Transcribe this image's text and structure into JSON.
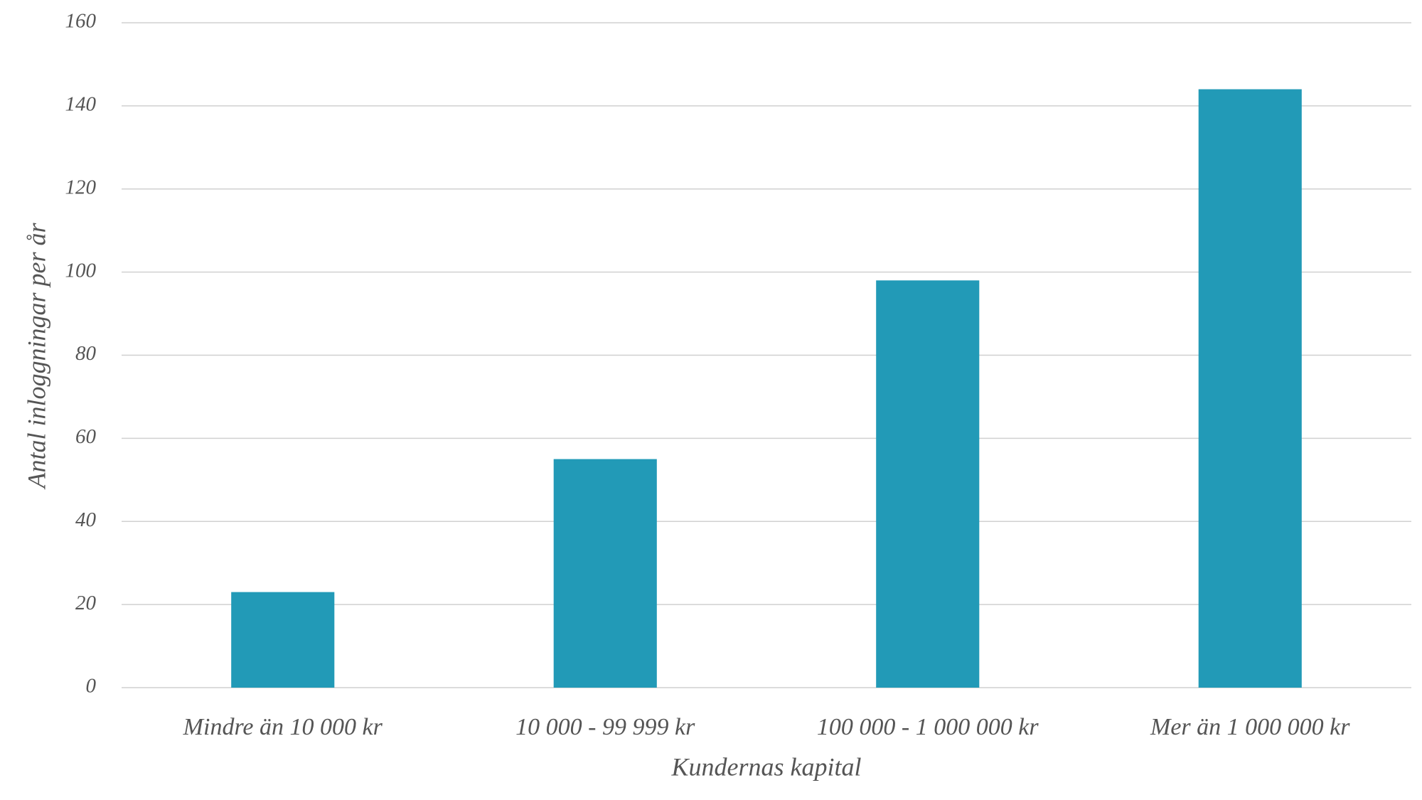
{
  "chart_data": {
    "type": "bar",
    "x_label": "Kundernas kapital",
    "y_label": "Antal inloggningar per år",
    "categories": [
      "Mindre än 10 000 kr",
      "10 000 - 99 999 kr",
      "100 000 - 1 000 000 kr",
      "Mer än 1 000 000 kr"
    ],
    "values": [
      23,
      55,
      98,
      144
    ],
    "color": "#229ab7",
    "ylim": [
      0,
      160
    ],
    "yticks": [
      0,
      20,
      40,
      60,
      80,
      100,
      120,
      140,
      160
    ],
    "grid": true
  }
}
